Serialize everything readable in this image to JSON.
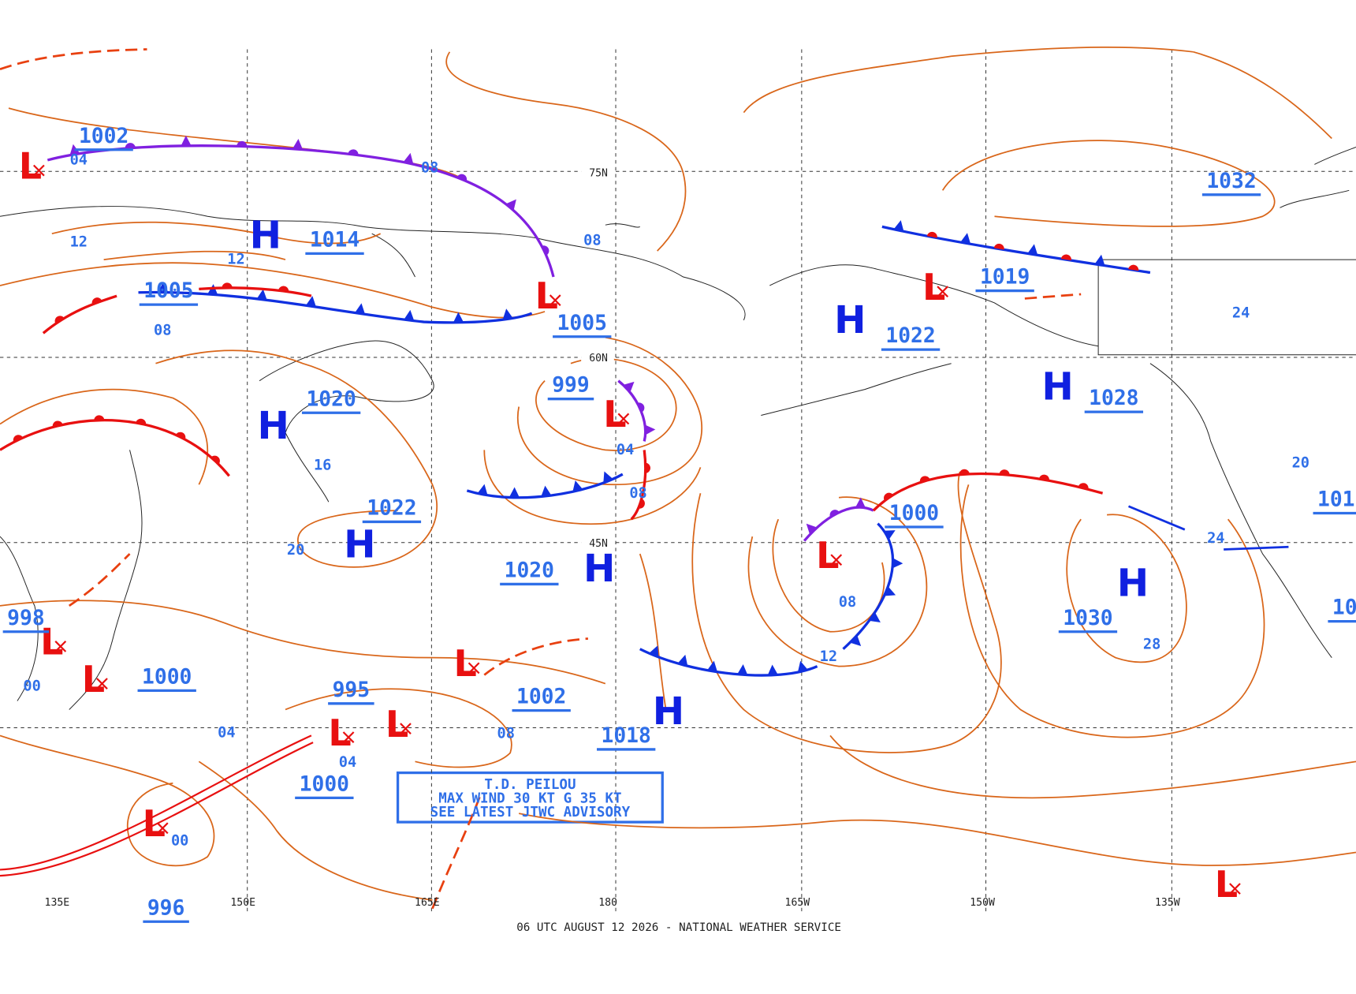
{
  "caption": "06 UTC AUGUST 12 2026 - NATIONAL WEATHER SERVICE",
  "advisory": [
    "T.D. PEILOU",
    "MAX WIND 30 KT G 35 KT",
    "SEE LATEST JTWC ADVISORY"
  ],
  "longitude_labels": [
    "135E",
    "150E",
    "165E",
    "180",
    "165W",
    "150W",
    "135W"
  ],
  "latitude_labels": [
    "75N",
    "60N",
    "45N"
  ],
  "symbols": {
    "high": "H",
    "low": "L"
  },
  "center_pressures": [
    "1002",
    "1014",
    "1005",
    "1020",
    "1022",
    "998",
    "1000",
    "995",
    "1002",
    "1000",
    "1020",
    "999",
    "1005",
    "1018",
    "1000",
    "1019",
    "1022",
    "1028",
    "1030",
    "1032",
    "101",
    "10",
    "996"
  ],
  "isobar_labels": [
    "04",
    "08",
    "12",
    "12",
    "08",
    "08",
    "16",
    "20",
    "04",
    "08",
    "00",
    "04",
    "04",
    "08",
    "00",
    "08",
    "12",
    "28",
    "24",
    "24",
    "20"
  ]
}
